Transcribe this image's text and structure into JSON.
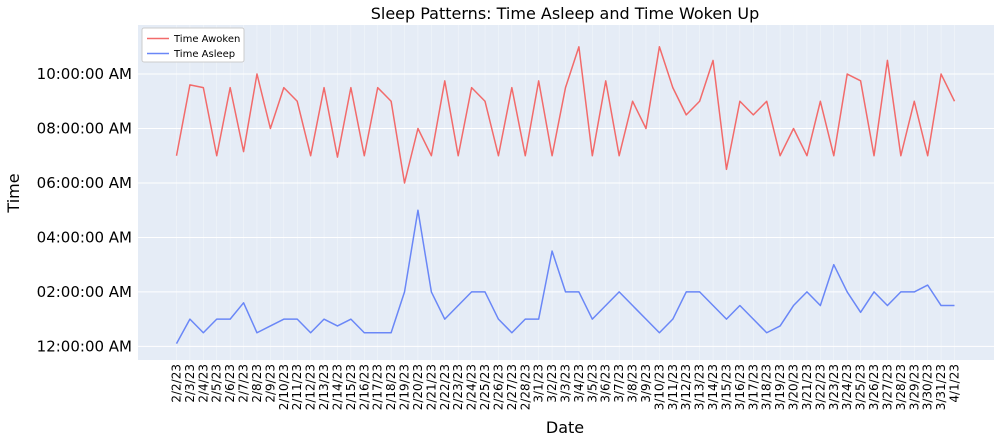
{
  "chart_data": {
    "type": "line",
    "title": "Sleep Patterns: Time Asleep and Time Woken Up",
    "xlabel": "Date",
    "ylabel": "Time",
    "ylim_hours": [
      -0.5,
      11.8
    ],
    "yticks": [
      {
        "hour": 0,
        "label": "12:00:00 AM"
      },
      {
        "hour": 2,
        "label": "02:00:00 AM"
      },
      {
        "hour": 4,
        "label": "04:00:00 AM"
      },
      {
        "hour": 6,
        "label": "06:00:00 AM"
      },
      {
        "hour": 8,
        "label": "08:00:00 AM"
      },
      {
        "hour": 10,
        "label": "10:00:00 AM"
      }
    ],
    "grid": true,
    "legend_position": "top-left",
    "background": "#E5ECF6",
    "categories": [
      "2/2/23",
      "2/3/23",
      "2/4/23",
      "2/5/23",
      "2/6/23",
      "2/7/23",
      "2/8/23",
      "2/9/23",
      "2/10/23",
      "2/11/23",
      "2/12/23",
      "2/13/23",
      "2/14/23",
      "2/15/23",
      "2/16/23",
      "2/17/23",
      "2/18/23",
      "2/19/23",
      "2/20/23",
      "2/21/23",
      "2/22/23",
      "2/23/23",
      "2/24/23",
      "2/25/23",
      "2/26/23",
      "2/27/23",
      "2/28/23",
      "3/1/23",
      "3/2/23",
      "3/3/23",
      "3/4/23",
      "3/5/23",
      "3/6/23",
      "3/7/23",
      "3/8/23",
      "3/9/23",
      "3/10/23",
      "3/11/23",
      "3/12/23",
      "3/13/23",
      "3/14/23",
      "3/15/23",
      "3/16/23",
      "3/17/23",
      "3/18/23",
      "3/19/23",
      "3/20/23",
      "3/21/23",
      "3/22/23",
      "3/23/23",
      "3/24/23",
      "3/25/23",
      "3/26/23",
      "3/27/23",
      "3/28/23",
      "3/29/23",
      "3/30/23",
      "3/31/23",
      "4/1/23"
    ],
    "series": [
      {
        "name": "Time Awoken",
        "color": "#F26B6B",
        "values": [
          7.0,
          9.6,
          9.5,
          7.0,
          9.5,
          7.15,
          10.0,
          8.0,
          9.5,
          9.0,
          7.0,
          9.5,
          6.95,
          9.5,
          7.0,
          9.5,
          9.0,
          6.0,
          8.0,
          7.0,
          9.75,
          7.0,
          9.5,
          9.0,
          7.0,
          9.5,
          7.0,
          9.75,
          7.0,
          9.5,
          11.0,
          7.0,
          9.75,
          7.0,
          9.0,
          8.0,
          11.0,
          9.5,
          8.5,
          9.0,
          10.5,
          6.5,
          9.0,
          8.5,
          9.0,
          7.0,
          8.0,
          7.0,
          9.0,
          7.0,
          10.0,
          9.75,
          7.0,
          10.5,
          7.0,
          9.0,
          7.0,
          10.0,
          9.0
        ]
      },
      {
        "name": "Time Asleep",
        "color": "#6A87F7",
        "values": [
          0.1,
          1.0,
          0.5,
          1.0,
          1.0,
          1.6,
          0.5,
          0.75,
          1.0,
          1.0,
          0.5,
          1.0,
          0.75,
          1.0,
          0.5,
          0.5,
          0.5,
          2.0,
          5.0,
          2.0,
          1.0,
          1.5,
          2.0,
          2.0,
          1.0,
          0.5,
          1.0,
          1.0,
          3.5,
          2.0,
          2.0,
          1.0,
          1.5,
          2.0,
          1.5,
          1.0,
          0.5,
          1.0,
          2.0,
          2.0,
          1.5,
          1.0,
          1.5,
          1.0,
          0.5,
          0.75,
          1.5,
          2.0,
          1.5,
          3.0,
          2.0,
          1.25,
          2.0,
          1.5,
          2.0,
          2.0,
          2.25,
          1.5,
          1.5
        ]
      }
    ]
  }
}
